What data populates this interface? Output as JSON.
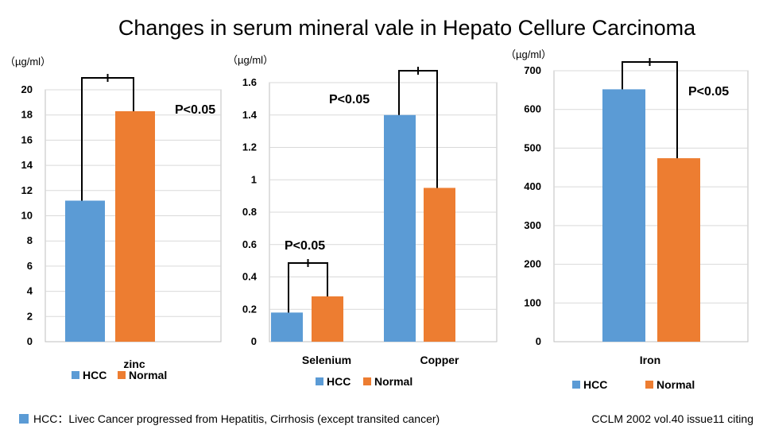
{
  "title": "Changes in serum mineral vale in Hepato Cellure Carcinoma",
  "colors": {
    "hcc": "#5B9BD5",
    "normal": "#ED7D31",
    "grid": "#d9d9d9",
    "axis": "#bfbfbf"
  },
  "legend": {
    "hcc": "HCC",
    "normal": "Normal"
  },
  "footnote": "HCC：Livec Cancer progressed from Hepatitis, Cirrhosis (except transited cancer)",
  "citation": "CCLM 2002 vol.40 issue11 citing",
  "chart_data": [
    {
      "type": "bar",
      "unit": "（µg/ml）",
      "categories": [
        "zinc"
      ],
      "series": [
        {
          "name": "HCC",
          "values": [
            11.2
          ]
        },
        {
          "name": "Normal",
          "values": [
            18.3
          ]
        }
      ],
      "ylim": [
        0,
        20
      ],
      "yticks": [
        0,
        2,
        4,
        6,
        8,
        10,
        12,
        14,
        16,
        18,
        20
      ],
      "ytick_labels": [
        "0",
        "2",
        "4",
        "6",
        "8",
        "10",
        "12",
        "14",
        "16",
        "18",
        "20"
      ],
      "annotations": [
        {
          "category": "zinc",
          "text": "P<0.05"
        }
      ],
      "grid": true,
      "legend_position": "bottom-left"
    },
    {
      "type": "bar",
      "unit": "（µg/ml）",
      "categories": [
        "Selenium",
        "Copper"
      ],
      "series": [
        {
          "name": "HCC",
          "values": [
            0.18,
            1.4
          ]
        },
        {
          "name": "Normal",
          "values": [
            0.28,
            0.95
          ]
        }
      ],
      "ylim": [
        0,
        1.6
      ],
      "yticks": [
        0,
        0.2,
        0.4,
        0.6,
        0.8,
        1.0,
        1.2,
        1.4,
        1.6
      ],
      "ytick_labels": [
        "0",
        "0.2",
        "0.4",
        "0.6",
        "0.8",
        "1",
        "1.2",
        "1.4",
        "1.6"
      ],
      "annotations": [
        {
          "category": "Selenium",
          "text": "P<0.05"
        },
        {
          "category": "Copper",
          "text": "P<0.05"
        }
      ],
      "grid": true,
      "legend_position": "bottom"
    },
    {
      "type": "bar",
      "unit": "（µg/ml）",
      "categories": [
        "Iron"
      ],
      "series": [
        {
          "name": "HCC",
          "values": [
            652
          ]
        },
        {
          "name": "Normal",
          "values": [
            474
          ]
        }
      ],
      "ylim": [
        0,
        700
      ],
      "yticks": [
        0,
        100,
        200,
        300,
        400,
        500,
        600,
        700
      ],
      "ytick_labels": [
        "0",
        "100",
        "200",
        "300",
        "400",
        "500",
        "600",
        "700"
      ],
      "annotations": [
        {
          "category": "Iron",
          "text": "P<0.05"
        }
      ],
      "grid": true,
      "legend_position": "bottom"
    }
  ]
}
